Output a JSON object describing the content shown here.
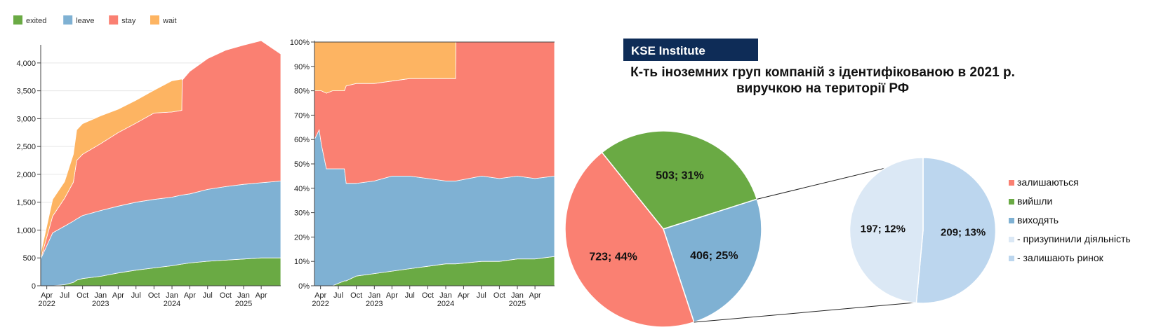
{
  "colors": {
    "exited": "#6aaa44",
    "leave": "#7fb1d3",
    "stay": "#fa8072",
    "wait": "#fdb462",
    "brand_navy": "#0e2c57",
    "pie_light": "#dbe8f5",
    "pie_light2": "#bcd6ee"
  },
  "legend": [
    {
      "key": "exited",
      "label": "exited"
    },
    {
      "key": "leave",
      "label": "leave"
    },
    {
      "key": "stay",
      "label": "stay"
    },
    {
      "key": "wait",
      "label": "wait"
    }
  ],
  "kse": {
    "badge": "KSE Institute",
    "title_line1": "К-ть іноземних груп компаній з ідентифікованою  в 2021 р.",
    "title_line2": "виручкою на території РФ"
  },
  "chart_data": [
    {
      "type": "area",
      "stacked": true,
      "x": [
        "2022-03-01",
        "2022-05-01",
        "2022-07-01",
        "2022-08-15",
        "2022-09-01",
        "2022-10-01",
        "2023-01-01",
        "2023-04-01",
        "2023-07-01",
        "2023-10-01",
        "2024-01-01",
        "2024-02-20",
        "2024-02-22",
        "2024-04-01",
        "2024-07-01",
        "2024-10-01",
        "2025-01-01",
        "2025-04-01",
        "2025-07-10"
      ],
      "series": [
        {
          "name": "exited",
          "values": [
            0,
            0,
            20,
            60,
            100,
            130,
            170,
            230,
            280,
            320,
            360,
            390,
            390,
            410,
            440,
            460,
            480,
            500,
            500
          ]
        },
        {
          "name": "leave",
          "values": [
            480,
            950,
            1050,
            1100,
            1100,
            1130,
            1180,
            1200,
            1220,
            1230,
            1230,
            1240,
            1240,
            1240,
            1290,
            1320,
            1340,
            1350,
            1380
          ]
        },
        {
          "name": "stay",
          "values": [
            0,
            300,
            500,
            700,
            1050,
            1100,
            1200,
            1320,
            1420,
            1550,
            1530,
            1520,
            2060,
            2200,
            2350,
            2450,
            2500,
            2550,
            2280
          ]
        },
        {
          "name": "wait",
          "values": [
            100,
            300,
            300,
            500,
            550,
            550,
            500,
            420,
            410,
            410,
            560,
            560,
            0,
            0,
            0,
            0,
            0,
            0,
            0
          ]
        }
      ],
      "ylim": [
        0,
        4300
      ],
      "yticks": [
        0,
        500,
        1000,
        1500,
        2000,
        2500,
        3000,
        3500,
        4000
      ],
      "ytick_labels": [
        "0",
        "500",
        "1,000",
        "1,500",
        "2,000",
        "2,500",
        "3,000",
        "3,500",
        "4,000"
      ],
      "xtick_labels": [
        {
          "date": "2022-04-01",
          "label": "Apr",
          "year": "2022"
        },
        {
          "date": "2022-07-01",
          "label": "Jul",
          "year": ""
        },
        {
          "date": "2022-10-01",
          "label": "Oct",
          "year": ""
        },
        {
          "date": "2023-01-01",
          "label": "Jan",
          "year": "2023"
        },
        {
          "date": "2023-04-01",
          "label": "Apr",
          "year": ""
        },
        {
          "date": "2023-07-01",
          "label": "Jul",
          "year": ""
        },
        {
          "date": "2023-10-01",
          "label": "Oct",
          "year": ""
        },
        {
          "date": "2024-01-01",
          "label": "Jan",
          "year": "2024"
        },
        {
          "date": "2024-04-01",
          "label": "Apr",
          "year": ""
        },
        {
          "date": "2024-07-01",
          "label": "Jul",
          "year": ""
        },
        {
          "date": "2024-10-01",
          "label": "Oct",
          "year": ""
        },
        {
          "date": "2025-01-01",
          "label": "Jan",
          "year": "2025"
        },
        {
          "date": "2025-04-01",
          "label": "Apr",
          "year": ""
        }
      ],
      "grid": true
    },
    {
      "type": "area",
      "stacked": true,
      "normalized": true,
      "x": [
        "2022-03-01",
        "2022-03-25",
        "2022-04-05",
        "2022-05-01",
        "2022-06-01",
        "2022-07-01",
        "2022-08-01",
        "2022-08-10",
        "2022-10-01",
        "2023-01-01",
        "2023-04-01",
        "2023-07-01",
        "2023-10-01",
        "2024-01-01",
        "2024-02-20",
        "2024-02-22",
        "2024-07-01",
        "2024-07-05",
        "2024-10-01",
        "2025-01-01",
        "2025-04-01",
        "2025-07-10"
      ],
      "series": [
        {
          "name": "exited",
          "values": [
            0,
            0,
            0,
            0,
            0,
            1,
            2,
            2,
            4,
            5,
            6,
            7,
            8,
            9,
            9,
            9,
            10,
            10,
            10,
            11,
            11,
            12
          ]
        },
        {
          "name": "leave",
          "values": [
            60,
            64,
            58,
            48,
            48,
            47,
            46,
            40,
            38,
            38,
            39,
            38,
            36,
            34,
            34,
            34,
            35,
            35,
            34,
            34,
            33,
            33
          ]
        },
        {
          "name": "stay",
          "values": [
            20,
            16,
            22,
            31,
            32,
            32,
            32,
            40,
            41,
            40,
            39,
            40,
            41,
            42,
            42,
            57,
            55,
            55,
            56,
            55,
            56,
            55
          ]
        },
        {
          "name": "wait",
          "values": [
            20,
            20,
            20,
            21,
            20,
            20,
            20,
            18,
            17,
            17,
            16,
            15,
            15,
            15,
            15,
            0,
            0,
            0,
            0,
            0,
            0,
            0
          ]
        }
      ],
      "ylim": [
        0,
        100
      ],
      "yticks": [
        0,
        10,
        20,
        30,
        40,
        50,
        60,
        70,
        80,
        90,
        100
      ],
      "ytick_labels": [
        "0%",
        "10%",
        "20%",
        "30%",
        "40%",
        "50%",
        "60%",
        "70%",
        "80%",
        "90%",
        "100%"
      ],
      "xtick_labels": [
        {
          "date": "2022-04-01",
          "label": "Apr",
          "year": "2022"
        },
        {
          "date": "2022-07-01",
          "label": "Jul",
          "year": ""
        },
        {
          "date": "2022-10-01",
          "label": "Oct",
          "year": ""
        },
        {
          "date": "2023-01-01",
          "label": "Jan",
          "year": "2023"
        },
        {
          "date": "2023-04-01",
          "label": "Apr",
          "year": ""
        },
        {
          "date": "2023-07-01",
          "label": "Jul",
          "year": ""
        },
        {
          "date": "2023-10-01",
          "label": "Oct",
          "year": ""
        },
        {
          "date": "2024-01-01",
          "label": "Jan",
          "year": "2024"
        },
        {
          "date": "2024-04-01",
          "label": "Apr",
          "year": ""
        },
        {
          "date": "2024-07-01",
          "label": "Jul",
          "year": ""
        },
        {
          "date": "2024-10-01",
          "label": "Oct",
          "year": ""
        },
        {
          "date": "2025-01-01",
          "label": "Jan",
          "year": "2025"
        },
        {
          "date": "2025-04-01",
          "label": "Apr",
          "year": ""
        }
      ]
    },
    {
      "type": "pie",
      "title": "К-ть іноземних груп компаній з ідентифікованою  в 2021 р. виручкою на території РФ",
      "slices": [
        {
          "name": "вийшли",
          "value": 503,
          "label": "503; 31%",
          "color_key": "exited"
        },
        {
          "name": "виходять",
          "value": 406,
          "label": "406; 25%",
          "color_key": "leave"
        },
        {
          "name": "залишаються",
          "value": 723,
          "label": "723; 44%",
          "color_key": "stay"
        }
      ],
      "breakdown_of": "виходять",
      "breakdown": [
        {
          "name": "- залишають  ринок",
          "value": 209,
          "label": "209; 13%",
          "color_key": "pie_light2"
        },
        {
          "name": "- призупинили  діяльність",
          "value": 197,
          "label": "197; 12%",
          "color_key": "pie_light"
        }
      ],
      "legend": [
        {
          "label": "залишаються",
          "color_key": "stay"
        },
        {
          "label": "вийшли",
          "color_key": "exited"
        },
        {
          "label": "виходять",
          "color_key": "leave"
        },
        {
          "label": "- призупинили  діяльність",
          "color_key": "pie_light"
        },
        {
          "label": "- залишають  ринок",
          "color_key": "pie_light2"
        }
      ]
    }
  ]
}
